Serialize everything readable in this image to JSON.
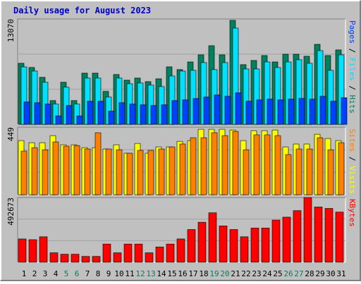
{
  "chart_data": [
    {
      "type": "bar",
      "title": "Daily usage for August 2023",
      "categories": [
        "1",
        "2",
        "3",
        "4",
        "5",
        "6",
        "7",
        "8",
        "9",
        "10",
        "11",
        "12",
        "13",
        "14",
        "15",
        "16",
        "17",
        "18",
        "19",
        "20",
        "21",
        "22",
        "23",
        "24",
        "25",
        "26",
        "27",
        "28",
        "29",
        "30",
        "31"
      ],
      "highlighted_categories": [
        "5",
        "6",
        "12",
        "13",
        "19",
        "20",
        "26",
        "27"
      ],
      "highlight_color": "#00805c",
      "legend_separator": " / ",
      "series": [
        {
          "name": "Hits",
          "color": "#00805c",
          "values": [
            7580,
            7060,
            5840,
            2960,
            5230,
            2960,
            6360,
            6360,
            4100,
            6190,
            5490,
            5750,
            5310,
            5660,
            7140,
            6800,
            7750,
            8630,
            9760,
            8630,
            12900,
            7410,
            7930,
            8540,
            7750,
            8710,
            8710,
            8450,
            9930,
            8540,
            9240
          ]
        },
        {
          "name": "Files",
          "color": "#00e0ff",
          "values": [
            7140,
            6620,
            5230,
            2530,
            4620,
            2530,
            5750,
            5750,
            3400,
            5750,
            5050,
            5140,
            4880,
            4700,
            6010,
            6620,
            6710,
            7670,
            6800,
            7670,
            11940,
            6880,
            6880,
            7750,
            7060,
            7750,
            8020,
            7580,
            9150,
            6710,
            8630
          ]
        },
        {
          "name": "Pages",
          "color": "#0040ff",
          "values": [
            2790,
            2700,
            2530,
            1050,
            2350,
            1050,
            2880,
            2880,
            1650,
            2700,
            2530,
            2440,
            2350,
            2440,
            2960,
            3050,
            3220,
            3400,
            3660,
            3490,
            3920,
            2880,
            3050,
            3140,
            3050,
            3140,
            3230,
            3140,
            3490,
            2880,
            3310
          ]
        }
      ],
      "ylim": [
        0,
        13070
      ],
      "yticks": [
        13070
      ]
    },
    {
      "type": "bar",
      "series": [
        {
          "name": "Visits",
          "color": "#ffff00",
          "values": [
            360,
            346,
            346,
            393,
            332,
            332,
            313,
            313,
            304,
            332,
            276,
            341,
            276,
            318,
            318,
            355,
            360,
            435,
            435,
            435,
            430,
            360,
            426,
            426,
            430,
            318,
            337,
            337,
            402,
            374,
            360
          ]
        },
        {
          "name": "Sites",
          "color": "#ff8000",
          "values": [
            290,
            313,
            299,
            351,
            323,
            327,
            304,
            412,
            304,
            299,
            276,
            295,
            295,
            304,
            318,
            337,
            379,
            379,
            412,
            393,
            421,
            299,
            398,
            398,
            393,
            267,
            304,
            304,
            379,
            299,
            346
          ]
        }
      ],
      "ylim": [
        0,
        449
      ],
      "yticks": [
        449
      ]
    },
    {
      "type": "bar",
      "series": [
        {
          "name": "KBytes",
          "color": "#ff0000",
          "values": [
            177150,
            171600,
            193800,
            72000,
            60900,
            60900,
            44300,
            44300,
            138400,
            72000,
            138400,
            138400,
            72000,
            116300,
            138400,
            177200,
            249100,
            304500,
            376400,
            276800,
            249100,
            193800,
            260200,
            260200,
            321100,
            343200,
            393100,
            492673,
            420700,
            409700,
            382000
          ]
        }
      ],
      "ylim": [
        0,
        492673
      ],
      "yticks": [
        492673
      ]
    }
  ]
}
